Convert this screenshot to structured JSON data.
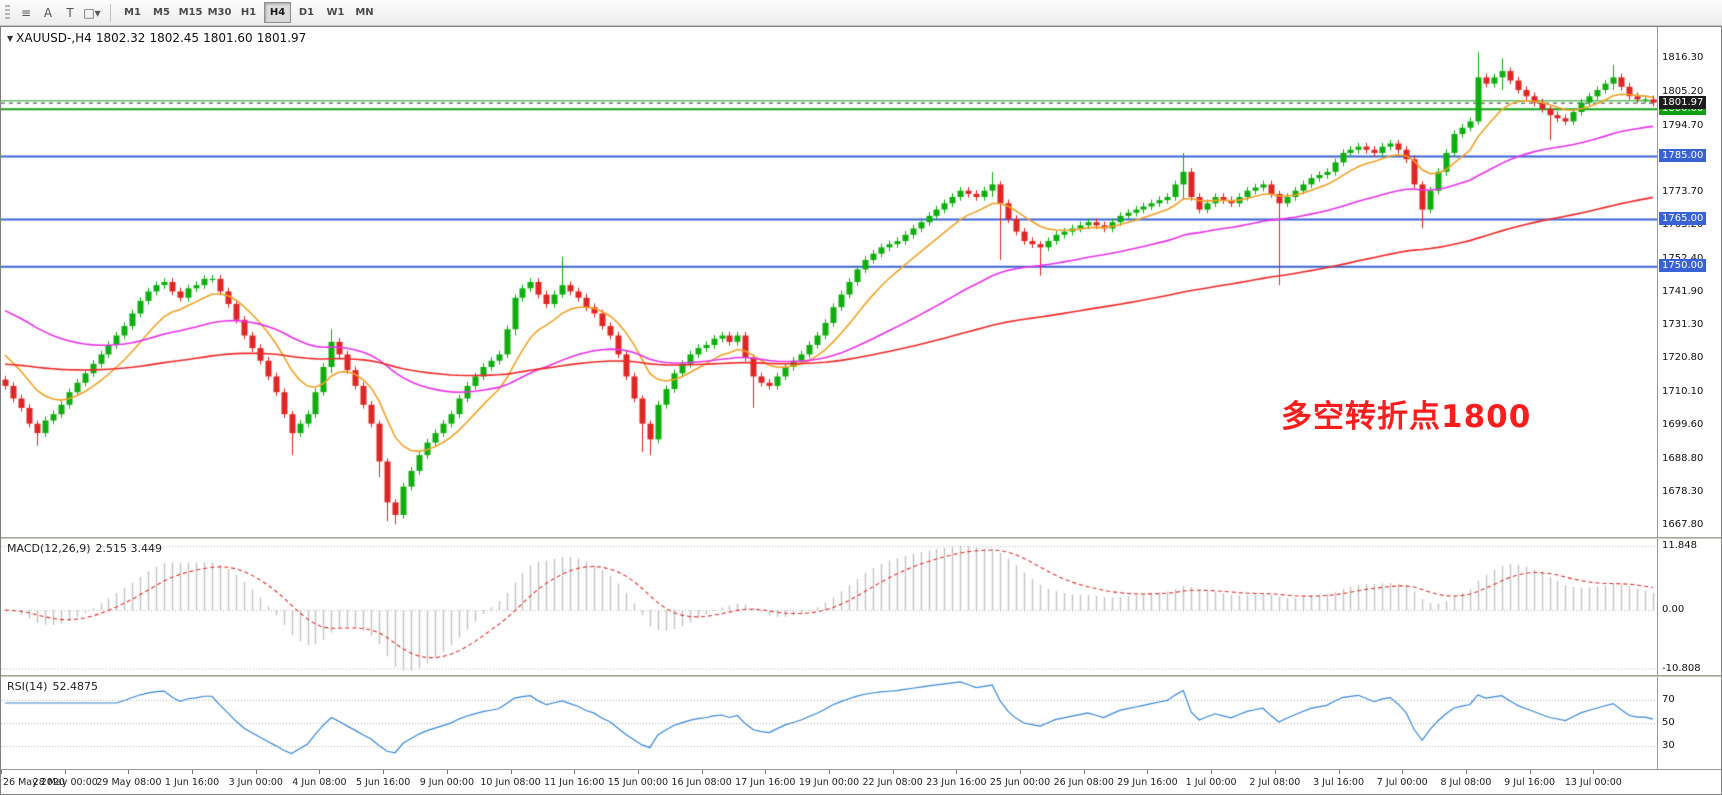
{
  "toolbar": {
    "tools": [
      {
        "name": "line-studies-icon",
        "glyph": "≡"
      },
      {
        "name": "text-annotation-icon",
        "glyph": "A"
      },
      {
        "name": "text-label-icon",
        "glyph": "T"
      },
      {
        "name": "shapes-dropdown-icon",
        "glyph": "□▾"
      }
    ],
    "timeframes": [
      {
        "label": "M1",
        "active": false
      },
      {
        "label": "M5",
        "active": false
      },
      {
        "label": "M15",
        "active": false
      },
      {
        "label": "M30",
        "active": false
      },
      {
        "label": "H1",
        "active": false
      },
      {
        "label": "H4",
        "active": true
      },
      {
        "label": "D1",
        "active": false
      },
      {
        "label": "W1",
        "active": false
      },
      {
        "label": "MN",
        "active": false
      }
    ]
  },
  "chart": {
    "header": {
      "symbol": "XAUUSD-,H4",
      "open": "1802.32",
      "high": "1802.45",
      "low": "1801.60",
      "close": "1801.97"
    },
    "annotation": {
      "text": "多空转折点1800",
      "color": "#fb1d1d"
    },
    "price_axis_labels": [
      "1816.30",
      "1805.20",
      "1794.70",
      "1784.20",
      "1773.70",
      "1763.20",
      "1752.40",
      "1741.90",
      "1731.30",
      "1720.80",
      "1710.10",
      "1699.60",
      "1688.80",
      "1678.30",
      "1667.80"
    ],
    "levels": [
      {
        "price": 1802.7,
        "color": "#15a015",
        "width": 1,
        "tag": ""
      },
      {
        "price": 1800.0,
        "color": "#15a015",
        "width": 2,
        "tag": "1800.00",
        "tag_bg": "#12a012"
      },
      {
        "price": 1785.0,
        "color": "#3a62d8",
        "width": 2,
        "tag": "1785.00",
        "tag_bg": "#3a62d8"
      },
      {
        "price": 1765.0,
        "color": "#3a62d8",
        "width": 2,
        "tag": "1765.00",
        "tag_bg": "#3a62d8"
      },
      {
        "price": 1750.0,
        "color": "#3a62d8",
        "width": 2,
        "tag": "1750.00",
        "tag_bg": "#3a62d8"
      }
    ],
    "current_price": {
      "value": 1801.97,
      "label": "1801.97",
      "tag_bg": "#1c1c1c"
    }
  },
  "colors": {
    "up": "#0fae0f",
    "down": "#e02525",
    "macd_hist": "#c2c2c2",
    "macd_signal": "#e03030",
    "rsi": "#3a87d6"
  },
  "macd_panel": {
    "label": "MACD(12,26,9)",
    "value": "2.515 3.449",
    "scale_max": 11.848,
    "scale_min": -10.808,
    "axis_labels": [
      "11.848",
      "0.00",
      "-10.808"
    ]
  },
  "rsi_panel": {
    "label": "RSI(14)",
    "value": "52.4875",
    "ylim": [
      10,
      90
    ],
    "levels": [
      {
        "text": "70",
        "value": 70
      },
      {
        "text": "50",
        "value": 50
      },
      {
        "text": "30",
        "value": 30
      }
    ]
  },
  "chart_data": {
    "type": "candlestick",
    "symbol": "XAUUSD",
    "timeframe": "H4",
    "title": "XAUUSD-,H4 1802.32 1802.45 1801.60 1801.97",
    "ylim": [
      1664,
      1826
    ],
    "first_open": 1714,
    "bars_per_label": 8,
    "x_labels": [
      "26 May 2020",
      "28 May 00:00",
      "29 May 08:00",
      "1 Jun 16:00",
      "3 Jun 00:00",
      "4 Jun 08:00",
      "5 Jun 16:00",
      "9 Jun 00:00",
      "10 Jun 08:00",
      "11 Jun 16:00",
      "15 Jun 00:00",
      "16 Jun 08:00",
      "17 Jun 16:00",
      "19 Jun 00:00",
      "22 Jun 08:00",
      "23 Jun 16:00",
      "25 Jun 00:00",
      "26 Jun 08:00",
      "29 Jun 16:00",
      "1 Jul 00:00",
      "2 Jul 08:00",
      "3 Jul 16:00",
      "7 Jul 00:00",
      "8 Jul 08:00",
      "9 Jul 16:00",
      "13 Jul 00:00"
    ],
    "closes": [
      1712,
      1708,
      1705,
      1700,
      1697,
      1701,
      1703,
      1706,
      1710,
      1713,
      1716,
      1719,
      1722,
      1725,
      1728,
      1731,
      1735,
      1739,
      1742,
      1744,
      1745,
      1742,
      1740,
      1743,
      1744,
      1746,
      1746,
      1742,
      1738,
      1733,
      1728,
      1724,
      1720,
      1715,
      1710,
      1703,
      1697,
      1700,
      1703,
      1710,
      1718,
      1726,
      1722,
      1717,
      1712,
      1706,
      1700,
      1688,
      1675,
      1671,
      1680,
      1685,
      1690,
      1694,
      1697,
      1700,
      1703,
      1708,
      1712,
      1715,
      1718,
      1720,
      1722,
      1730,
      1740,
      1743,
      1745,
      1741,
      1738,
      1741,
      1744,
      1742,
      1740,
      1737,
      1735,
      1731,
      1728,
      1722,
      1715,
      1708,
      1700,
      1695,
      1706,
      1711,
      1716,
      1719,
      1722,
      1724,
      1725,
      1727,
      1728,
      1726,
      1728,
      1721,
      1715,
      1713,
      1712,
      1715,
      1718,
      1720,
      1722,
      1725,
      1728,
      1732,
      1737,
      1741,
      1745,
      1749,
      1752,
      1754,
      1756,
      1757,
      1758,
      1760,
      1762,
      1764,
      1766,
      1768,
      1770,
      1772,
      1774,
      1773,
      1772,
      1774,
      1776,
      1770,
      1765,
      1761,
      1758,
      1757,
      1756,
      1758,
      1760,
      1761,
      1762,
      1763,
      1764,
      1763,
      1762,
      1764,
      1766,
      1767,
      1768,
      1769,
      1770,
      1771,
      1772,
      1776,
      1780,
      1772,
      1768,
      1770,
      1772,
      1771,
      1770,
      1772,
      1774,
      1775,
      1776,
      1773,
      1770,
      1772,
      1774,
      1776,
      1778,
      1779,
      1780,
      1783,
      1786,
      1787,
      1788,
      1787,
      1786,
      1788,
      1789,
      1787,
      1784,
      1776,
      1768,
      1774,
      1780,
      1786,
      1792,
      1794,
      1796,
      1810,
      1808,
      1810,
      1812,
      1809,
      1806,
      1804,
      1802,
      1800,
      1798,
      1797,
      1796,
      1799,
      1802,
      1804,
      1806,
      1808,
      1810,
      1807,
      1804,
      1803,
      1803,
      1801.97
    ],
    "wick_overrides": {
      "4": [
        1701,
        1693
      ],
      "36": [
        1704,
        1690
      ],
      "41": [
        1730,
        1716
      ],
      "47": [
        1701,
        1683
      ],
      "48": [
        1689,
        1669
      ],
      "49": [
        1676,
        1668
      ],
      "64": [
        1741,
        1728
      ],
      "70": [
        1753,
        1740
      ],
      "80": [
        1709,
        1691
      ],
      "81": [
        1701,
        1690
      ],
      "94": [
        1722,
        1705
      ],
      "124": [
        1780,
        1772
      ],
      "125": [
        1777,
        1752
      ],
      "130": [
        1758,
        1747
      ],
      "148": [
        1786,
        1771
      ],
      "160": [
        1774,
        1744
      ],
      "178": [
        1777,
        1762
      ],
      "185": [
        1818,
        1795
      ],
      "188": [
        1816,
        1806
      ],
      "194": [
        1801,
        1790
      ],
      "202": [
        1814,
        1806
      ]
    },
    "moving_averages": [
      {
        "name": "ma-fast",
        "period": 10,
        "init": 1724,
        "color": "#efa227"
      },
      {
        "name": "ma-mid",
        "period": 45,
        "init": 1737,
        "color": "#e832e8"
      },
      {
        "name": "ma-slow",
        "period": 130,
        "init": 1719,
        "color": "#ef2929"
      }
    ]
  }
}
